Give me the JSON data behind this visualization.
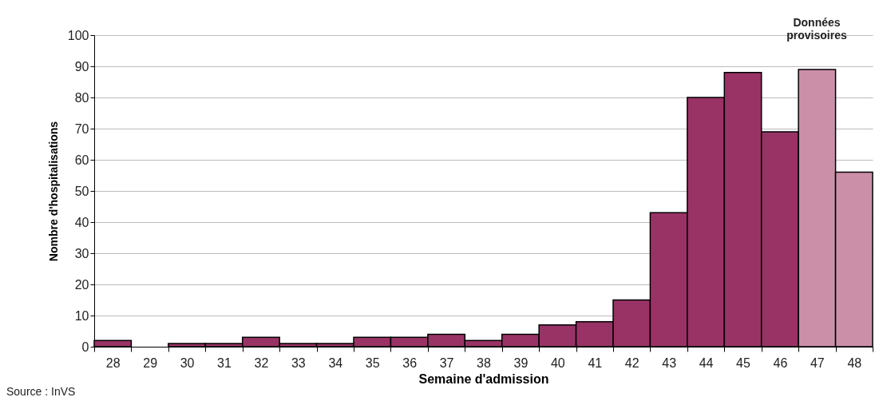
{
  "chart_data": {
    "type": "bar",
    "xlabel": "Semaine d'admission",
    "ylabel": "Nombre d'hospitalisations",
    "categories": [
      "28",
      "29",
      "30",
      "31",
      "32",
      "33",
      "34",
      "35",
      "36",
      "37",
      "38",
      "39",
      "40",
      "41",
      "42",
      "43",
      "44",
      "45",
      "46",
      "47",
      "48"
    ],
    "values": [
      2,
      0,
      1,
      1,
      3,
      1,
      1,
      3,
      3,
      4,
      2,
      4,
      7,
      8,
      15,
      43,
      80,
      88,
      69,
      89,
      56
    ],
    "colors": [
      "#993366",
      "#993366",
      "#993366",
      "#993366",
      "#993366",
      "#993366",
      "#993366",
      "#993366",
      "#993366",
      "#993366",
      "#993366",
      "#993366",
      "#993366",
      "#993366",
      "#993366",
      "#993366",
      "#993366",
      "#993366",
      "#993366",
      "#cc8fa8",
      "#cc8fa8"
    ],
    "ylim": [
      0,
      100
    ],
    "yticks": [
      0,
      10,
      20,
      30,
      40,
      50,
      60,
      70,
      80,
      90,
      100
    ],
    "grid": "y",
    "annotations": [
      "Données provisoires",
      "Source : InVS"
    ]
  }
}
